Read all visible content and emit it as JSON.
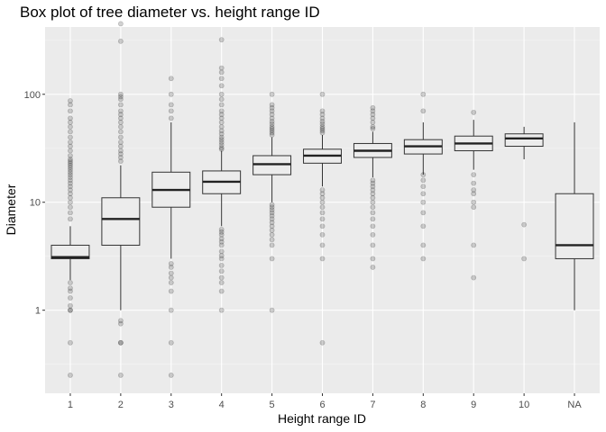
{
  "chart_data": {
    "type": "box",
    "title": "Box plot of tree diameter vs. height range ID",
    "xlabel": "Height range ID",
    "ylabel": "Diameter",
    "y_scale": "log10",
    "ylim": [
      0.17,
      420
    ],
    "y_ticks": [
      1,
      10,
      100
    ],
    "y_tick_labels": [
      "1",
      "10",
      "100"
    ],
    "grid": true,
    "colors": {
      "panel": "#ebebeb",
      "grid_major": "#ffffff",
      "box_fill": "#ececec",
      "box_line": "#333333",
      "outlier": "#000000"
    },
    "categories": [
      "1",
      "2",
      "3",
      "4",
      "5",
      "6",
      "7",
      "8",
      "9",
      "10",
      "NA"
    ],
    "boxes": [
      {
        "category": "1",
        "min": 1.9,
        "q1": 3.0,
        "median": 3.1,
        "q3": 4.0,
        "max": 6.0,
        "outliers": [
          0.25,
          0.5,
          1.0,
          1.0,
          1.1,
          1.3,
          1.5,
          1.6,
          1.8,
          7,
          8,
          9,
          10,
          11,
          12,
          13,
          14,
          15,
          16,
          17,
          18,
          19,
          20,
          21,
          22,
          23,
          24,
          25,
          27,
          30,
          33,
          36,
          40,
          45,
          50,
          55,
          60,
          70,
          80,
          87
        ]
      },
      {
        "category": "2",
        "min": 1.0,
        "q1": 4.0,
        "median": 7.0,
        "q3": 11.0,
        "max": 22.0,
        "outliers": [
          0.25,
          0.5,
          0.5,
          0.75,
          0.8,
          24,
          26,
          28,
          30,
          33,
          36,
          40,
          45,
          50,
          55,
          60,
          65,
          70,
          80,
          90,
          95,
          100,
          310,
          450
        ]
      },
      {
        "category": "3",
        "min": 3.0,
        "q1": 9.0,
        "median": 13.0,
        "q3": 19.0,
        "max": 55.0,
        "outliers": [
          0.25,
          0.5,
          1.0,
          1.5,
          1.8,
          2.0,
          2.2,
          2.5,
          2.7,
          60,
          70,
          80,
          100,
          140
        ]
      },
      {
        "category": "4",
        "min": 6.0,
        "q1": 12.0,
        "median": 15.5,
        "q3": 19.5,
        "max": 30.0,
        "outliers": [
          1.0,
          1.5,
          1.8,
          2.0,
          2.3,
          2.6,
          3.0,
          3.2,
          3.5,
          4.0,
          4.3,
          4.6,
          5.0,
          5.3,
          5.6,
          31,
          32,
          34,
          36,
          38,
          40,
          43,
          46,
          50,
          55,
          60,
          65,
          70,
          80,
          90,
          100,
          120,
          140,
          160,
          175,
          320
        ]
      },
      {
        "category": "5",
        "min": 10.0,
        "q1": 18.0,
        "median": 22.5,
        "q3": 27.0,
        "max": 40.0,
        "outliers": [
          1.0,
          3.0,
          4.0,
          4.5,
          5.0,
          5.5,
          6.0,
          6.5,
          7.0,
          7.5,
          8.0,
          8.5,
          9.0,
          9.5,
          42,
          44,
          46,
          48,
          50,
          53,
          56,
          60,
          65,
          70,
          75,
          80,
          100
        ]
      },
      {
        "category": "6",
        "min": 14.0,
        "q1": 23.0,
        "median": 27.0,
        "q3": 31.0,
        "max": 42.0,
        "outliers": [
          0.5,
          3.0,
          4.0,
          5.0,
          6.0,
          7.0,
          8.0,
          9.0,
          10.0,
          11.0,
          12.0,
          13.0,
          44,
          46,
          48,
          50,
          53,
          56,
          60,
          65,
          70,
          100
        ]
      },
      {
        "category": "7",
        "min": 17.0,
        "q1": 26.0,
        "median": 30.0,
        "q3": 35.0,
        "max": 45.0,
        "outliers": [
          2.5,
          3.0,
          4.0,
          5.0,
          6.0,
          7.0,
          8.0,
          9.0,
          10.0,
          11.0,
          12.0,
          13.0,
          14.0,
          15.0,
          16.0,
          48,
          50,
          55,
          60,
          65,
          70,
          75
        ]
      },
      {
        "category": "8",
        "min": 18.0,
        "q1": 28.0,
        "median": 33.0,
        "q3": 38.0,
        "max": 55.0,
        "outliers": [
          3.0,
          4.0,
          6.0,
          8.0,
          10.0,
          12.0,
          14.0,
          16.0,
          18.0,
          70,
          100
        ]
      },
      {
        "category": "9",
        "min": 20.0,
        "q1": 30.0,
        "median": 35.0,
        "q3": 41.0,
        "max": 58.0,
        "outliers": [
          2.0,
          4.0,
          9.0,
          10.0,
          12.0,
          13.0,
          15.0,
          18.0,
          68
        ]
      },
      {
        "category": "10",
        "min": 25.0,
        "q1": 33.0,
        "median": 39.0,
        "q3": 43.0,
        "max": 50.0,
        "outliers": [
          3.0,
          6.2
        ]
      },
      {
        "category": "NA",
        "min": 1.0,
        "q1": 3.0,
        "median": 4.0,
        "q3": 12.0,
        "max": 55.0,
        "outliers": []
      }
    ]
  }
}
